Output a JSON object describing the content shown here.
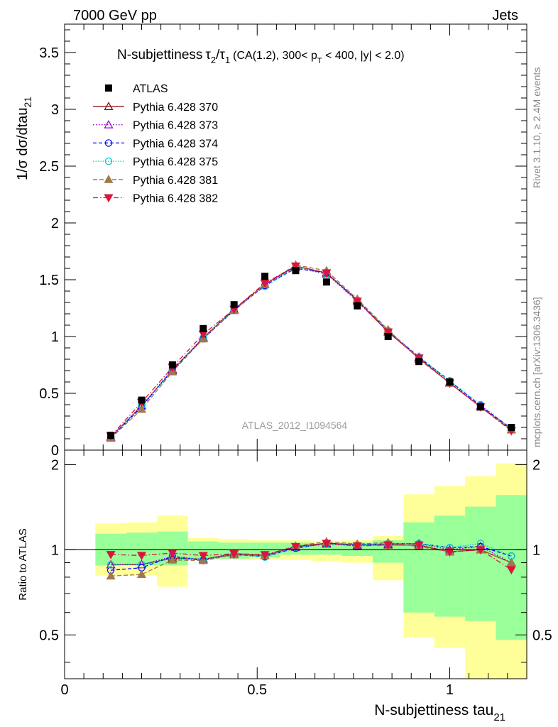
{
  "header": {
    "left": "7000 GeV pp",
    "right": "Jets"
  },
  "title": {
    "main": "N-subjettiness",
    "tau2": "τ",
    "tau2_sub": "2",
    "slash": "/",
    "tau1": "τ",
    "tau1_sub": "1",
    "rest_a": "(CA(1.2), 300< p",
    "pt_sub": "T",
    "rest_b": " < 400, |y| < 2.0)"
  },
  "side_labels": {
    "rivet": "Rivet 3.1.10, ≥ 2.4M events",
    "mcplots": "mcplots.cern.ch [arXiv:1306.3436]"
  },
  "watermark": "ATLAS_2012_I1094564",
  "axes": {
    "ylabel_main": "1/σ dσ/dtau",
    "ylabel_main_sub": "21",
    "ylabel_ratio": "Ratio to ATLAS",
    "xlabel": "N-subjettiness tau",
    "xlabel_sub": "21",
    "main_ticks": [
      "0",
      "0.5",
      "1",
      "1.5",
      "2",
      "2.5",
      "3",
      "3.5"
    ],
    "ratio_ticks": [
      "0.5",
      "1",
      "2"
    ],
    "x_ticks": [
      "0",
      "0.5",
      "1"
    ]
  },
  "colors": {
    "p370": "#8b0000",
    "p373": "#9400d3",
    "p374": "#0000ff",
    "p375": "#00c8c8",
    "p381": "#a0784b",
    "p382": "#dc143c",
    "band_inner": "#99ff99",
    "band_outer": "#ffff99"
  },
  "chart_data": {
    "type": "line",
    "xlim": [
      0,
      1.2
    ],
    "ylim_main": [
      0,
      3.75
    ],
    "ylim_ratio": [
      0.35,
      2.25
    ],
    "x": [
      0.12,
      0.2,
      0.28,
      0.36,
      0.44,
      0.52,
      0.6,
      0.68,
      0.76,
      0.84,
      0.92,
      1.0,
      1.08,
      1.16
    ],
    "bins": [
      [
        0.08,
        0.16
      ],
      [
        0.16,
        0.24
      ],
      [
        0.24,
        0.32
      ],
      [
        0.32,
        0.4
      ],
      [
        0.4,
        0.48
      ],
      [
        0.48,
        0.56
      ],
      [
        0.56,
        0.64
      ],
      [
        0.64,
        0.72
      ],
      [
        0.72,
        0.8
      ],
      [
        0.8,
        0.88
      ],
      [
        0.88,
        0.96
      ],
      [
        0.96,
        1.04
      ],
      [
        1.04,
        1.12
      ],
      [
        1.12,
        1.2
      ]
    ],
    "data": {
      "name": "ATLAS",
      "values": [
        0.13,
        0.44,
        0.75,
        1.07,
        1.28,
        1.53,
        1.58,
        1.48,
        1.27,
        1.0,
        0.78,
        0.6,
        0.38,
        0.2
      ]
    },
    "band_inner": {
      "lo": [
        0.88,
        0.88,
        0.88,
        0.93,
        0.93,
        0.94,
        0.96,
        0.96,
        0.95,
        0.9,
        0.6,
        0.58,
        0.56,
        0.48
      ],
      "hi": [
        1.14,
        1.15,
        1.16,
        1.07,
        1.06,
        1.06,
        1.06,
        1.05,
        1.06,
        1.08,
        1.25,
        1.32,
        1.42,
        1.56
      ]
    },
    "band_outer": {
      "lo": [
        0.81,
        0.81,
        0.74,
        0.92,
        0.92,
        0.92,
        0.92,
        0.91,
        0.9,
        0.78,
        0.49,
        0.45,
        0.35,
        0.35
      ],
      "hi": [
        1.24,
        1.25,
        1.32,
        1.1,
        1.09,
        1.08,
        1.08,
        1.07,
        1.08,
        1.12,
        1.57,
        1.68,
        1.82,
        2.02
      ]
    },
    "series": [
      {
        "name": "Pythia 6.428 370",
        "key": "p370",
        "marker": "tri-open",
        "dash": "",
        "values": [
          0.115,
          0.39,
          0.7,
          0.99,
          1.24,
          1.46,
          1.62,
          1.56,
          1.32,
          1.04,
          0.81,
          0.59,
          0.38,
          0.18
        ]
      },
      {
        "name": "Pythia 6.428 373",
        "key": "p373",
        "marker": "tri-open",
        "dash": "1.5,2.5",
        "values": [
          0.115,
          0.39,
          0.71,
          0.99,
          1.23,
          1.46,
          1.61,
          1.55,
          1.31,
          1.05,
          0.82,
          0.6,
          0.39,
          0.18
        ]
      },
      {
        "name": "Pythia 6.428 374",
        "key": "p374",
        "marker": "circ-open",
        "dash": "5,3",
        "values": [
          0.11,
          0.38,
          0.71,
          0.98,
          1.23,
          1.45,
          1.6,
          1.56,
          1.32,
          1.05,
          0.82,
          0.61,
          0.39,
          0.19
        ]
      },
      {
        "name": "Pythia 6.428 375",
        "key": "p375",
        "marker": "circ-open",
        "dash": "1.5,2",
        "values": [
          0.115,
          0.39,
          0.7,
          0.99,
          1.24,
          1.44,
          1.61,
          1.55,
          1.32,
          1.05,
          0.82,
          0.61,
          0.4,
          0.19
        ]
      },
      {
        "name": "Pythia 6.428 381",
        "key": "p381",
        "marker": "tri-full",
        "dash": "6,3",
        "values": [
          0.105,
          0.36,
          0.69,
          0.98,
          1.23,
          1.46,
          1.63,
          1.58,
          1.33,
          1.06,
          0.8,
          0.59,
          0.38,
          0.18
        ]
      },
      {
        "name": "Pythia 6.428 382",
        "key": "p382",
        "marker": "tridown-full",
        "dash": "7,3,1.5,3",
        "values": [
          0.125,
          0.42,
          0.73,
          1.02,
          1.24,
          1.47,
          1.62,
          1.56,
          1.31,
          1.04,
          0.81,
          0.59,
          0.38,
          0.17
        ]
      }
    ]
  }
}
